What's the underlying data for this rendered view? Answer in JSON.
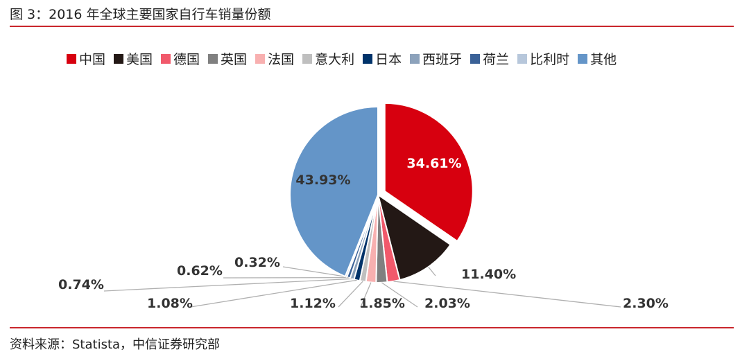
{
  "figure_title": "图 3：2016 年全球主要国家自行车销量份额",
  "source": "资料来源：Statista，中信证券研究部",
  "chart_data": {
    "type": "pie",
    "title": "",
    "legend_position": "top",
    "slices": [
      {
        "name": "中国",
        "value": 34.61,
        "label": "34.61%",
        "color": "#d7000f"
      },
      {
        "name": "美国",
        "value": 11.4,
        "label": "11.40%",
        "color": "#231815"
      },
      {
        "name": "德国",
        "value": 2.3,
        "label": "2.30%",
        "color": "#f1596b"
      },
      {
        "name": "英国",
        "value": 2.03,
        "label": "2.03%",
        "color": "#808080"
      },
      {
        "name": "法国",
        "value": 1.85,
        "label": "1.85%",
        "color": "#f8b0b0"
      },
      {
        "name": "意大利",
        "value": 1.12,
        "label": "1.12%",
        "color": "#bfbfbf"
      },
      {
        "name": "日本",
        "value": 1.08,
        "label": "1.08%",
        "color": "#00336a"
      },
      {
        "name": "西班牙",
        "value": 0.74,
        "label": "0.74%",
        "color": "#8ca2bb"
      },
      {
        "name": "荷兰",
        "value": 0.62,
        "label": "0.62%",
        "color": "#3a6197"
      },
      {
        "name": "比利时",
        "value": 0.32,
        "label": "0.32%",
        "color": "#b7c7db"
      },
      {
        "name": "其他",
        "value": 43.93,
        "label": "43.93%",
        "color": "#6495c8"
      }
    ]
  }
}
